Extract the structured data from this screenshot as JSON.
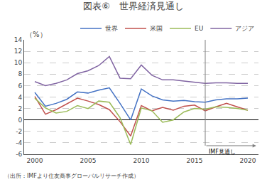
{
  "chart_data": {
    "type": "line",
    "title": "図表⑥　世界経済見通し",
    "subtitle": "（出所：IMFより住友商事グローバルリサーチ作成）",
    "ylabel": "（%）",
    "annotations": [
      {
        "text": "IMF見通し",
        "x": 2016
      }
    ],
    "x": [
      2000,
      2001,
      2002,
      2003,
      2004,
      2005,
      2006,
      2007,
      2008,
      2009,
      2010,
      2011,
      2012,
      2013,
      2014,
      2015,
      2016,
      2017,
      2018,
      2019,
      2020
    ],
    "series": [
      {
        "name": "世界",
        "color": "#4472c4",
        "values": [
          4.8,
          2.4,
          2.9,
          3.6,
          4.9,
          4.7,
          5.2,
          5.6,
          2.9,
          0.0,
          5.4,
          4.2,
          3.5,
          3.3,
          3.4,
          3.2,
          3.1,
          3.5,
          3.7,
          3.7,
          3.8
        ]
      },
      {
        "name": "米国",
        "color": "#c0504d",
        "values": [
          4.1,
          1.0,
          1.8,
          2.8,
          3.8,
          3.3,
          2.7,
          1.8,
          -0.3,
          -2.8,
          2.5,
          1.6,
          2.2,
          1.7,
          2.4,
          2.6,
          1.6,
          2.3,
          2.9,
          2.3,
          1.7
        ]
      },
      {
        "name": "EU",
        "color": "#9bbb59",
        "values": [
          3.8,
          2.1,
          1.2,
          1.5,
          2.5,
          2.0,
          3.3,
          3.1,
          0.4,
          -4.3,
          2.1,
          1.6,
          -0.4,
          0.0,
          1.4,
          2.0,
          1.9,
          2.3,
          2.2,
          2.0,
          1.7
        ]
      },
      {
        "name": "アジア",
        "color": "#8064a2",
        "values": [
          6.7,
          6.0,
          6.4,
          7.0,
          8.1,
          8.6,
          9.5,
          11.1,
          7.3,
          7.2,
          9.6,
          7.8,
          7.0,
          7.0,
          6.8,
          6.6,
          6.4,
          6.5,
          6.5,
          6.4,
          6.4
        ]
      }
    ],
    "xlim": [
      1999,
      2021
    ],
    "xticks": [
      2000,
      2005,
      2010,
      2015,
      2020
    ],
    "ylim": [
      -6,
      14
    ],
    "yticks": [
      -6,
      -4,
      -2,
      0,
      2,
      4,
      6,
      8,
      10,
      12,
      14
    ],
    "grid": true,
    "legend": "upper right"
  }
}
